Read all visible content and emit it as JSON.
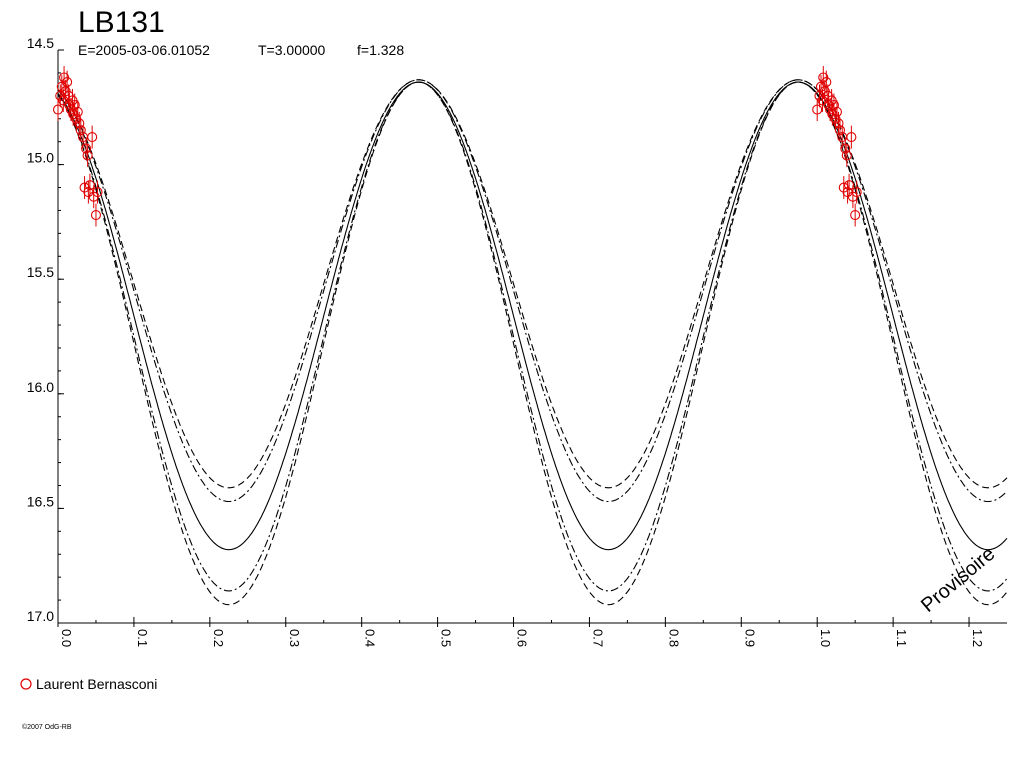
{
  "chart_data": {
    "type": "scatter",
    "title": "LB131",
    "subtitle": {
      "epoch": "E=2005-03-06.01052",
      "period": "T=3.00000",
      "f": "f=1.328"
    },
    "xlabel": "",
    "ylabel": "",
    "xlim": [
      0.0,
      1.25
    ],
    "ylim": [
      17.0,
      14.5
    ],
    "y_inverted": true,
    "grid": false,
    "x_ticks": [
      "0.0",
      "0.1",
      "0.2",
      "0.3",
      "0.4",
      "0.5",
      "0.6",
      "0.7",
      "0.8",
      "0.9",
      "1.0",
      "1.1",
      "1.2"
    ],
    "y_ticks": [
      "14.5",
      "15.0",
      "15.5",
      "16.0",
      "16.5",
      "17.0"
    ],
    "model_curves": [
      {
        "style": "solid",
        "mean": 15.66,
        "amplitude": 1.02,
        "phase_max": 0.475
      },
      {
        "style": "dashed",
        "mean": 15.52,
        "amplitude": 0.89,
        "phase_max": 0.475
      },
      {
        "style": "dashdot",
        "mean": 15.55,
        "amplitude": 0.92,
        "phase_max": 0.475
      },
      {
        "style": "dashdot",
        "mean": 15.75,
        "amplitude": 1.11,
        "phase_max": 0.475
      },
      {
        "style": "dashed",
        "mean": 15.78,
        "amplitude": 1.14,
        "phase_max": 0.475
      }
    ],
    "series": [
      {
        "name": "Laurent Bernasconi",
        "color": "#e00000",
        "marker": "circle",
        "x": [
          0.0,
          0.003,
          0.005,
          0.007,
          0.008,
          0.01,
          0.012,
          0.014,
          0.015,
          0.017,
          0.019,
          0.02,
          0.022,
          0.024,
          0.026,
          0.028,
          0.03,
          0.033,
          0.035,
          0.037,
          0.039,
          0.04,
          0.042,
          0.045,
          0.047,
          0.05,
          0.052
        ],
        "y": [
          14.76,
          14.7,
          14.66,
          14.72,
          14.62,
          14.68,
          14.64,
          14.7,
          14.74,
          14.76,
          14.72,
          14.78,
          14.74,
          14.8,
          14.77,
          14.82,
          14.85,
          14.88,
          15.1,
          14.93,
          14.96,
          15.12,
          15.09,
          14.88,
          15.14,
          15.22,
          15.12
        ],
        "err": [
          0.05,
          0.05,
          0.05,
          0.05,
          0.05,
          0.05,
          0.05,
          0.05,
          0.05,
          0.05,
          0.05,
          0.05,
          0.05,
          0.05,
          0.05,
          0.05,
          0.05,
          0.05,
          0.05,
          0.05,
          0.05,
          0.05,
          0.05,
          0.05,
          0.05,
          0.05,
          0.05
        ]
      }
    ],
    "legend_position": "bottom-left",
    "annotations": [
      "Provisoire"
    ]
  },
  "footer": {
    "copyright": "©2007 OdG-RB"
  }
}
